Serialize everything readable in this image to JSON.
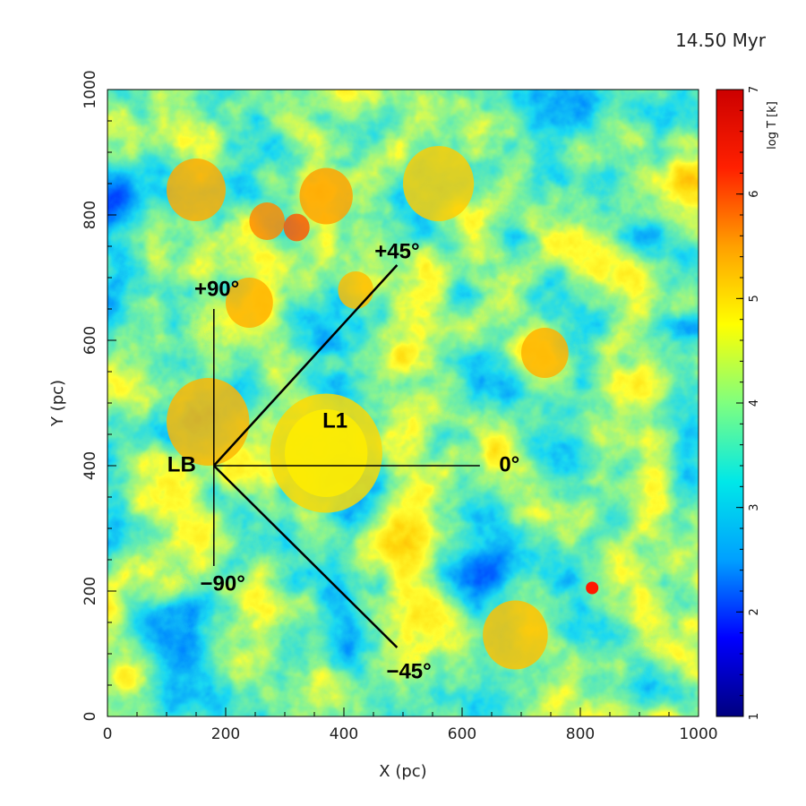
{
  "chart_data": {
    "type": "heatmap",
    "time_label": "14.50 Myr",
    "xlabel": "X (pc)",
    "ylabel": "Y (pc)",
    "xlim": [
      0,
      1000
    ],
    "ylim": [
      0,
      1000
    ],
    "xticks": [
      0,
      200,
      400,
      600,
      800,
      1000
    ],
    "yticks": [
      0,
      200,
      400,
      600,
      800,
      1000
    ],
    "colorbar": {
      "label": "log T [k]",
      "range": [
        1,
        7
      ],
      "ticks": [
        1,
        2,
        3,
        4,
        5,
        6,
        7
      ],
      "colormap": [
        "#00007f",
        "#0000ff",
        "#00a0ff",
        "#00e8e8",
        "#7fff7f",
        "#ffff00",
        "#ffa000",
        "#ff2000",
        "#cc0000"
      ]
    },
    "origin": {
      "label": "LB",
      "x": 180,
      "y": 400
    },
    "sightlines": [
      {
        "label": "+90°",
        "end": [
          180,
          650
        ],
        "label_pos": [
          185,
          680
        ]
      },
      {
        "label": "+45°",
        "end": [
          490,
          720
        ],
        "label_pos": [
          490,
          740
        ]
      },
      {
        "label": "0°",
        "end": [
          630,
          400
        ],
        "label_pos": [
          680,
          400
        ]
      },
      {
        "label": "−45°",
        "end": [
          490,
          110
        ],
        "label_pos": [
          510,
          70
        ]
      },
      {
        "label": "−90°",
        "end": [
          180,
          240
        ],
        "label_pos": [
          195,
          210
        ]
      }
    ],
    "regions": [
      {
        "label": "L1",
        "x": 385,
        "y": 470
      }
    ]
  }
}
